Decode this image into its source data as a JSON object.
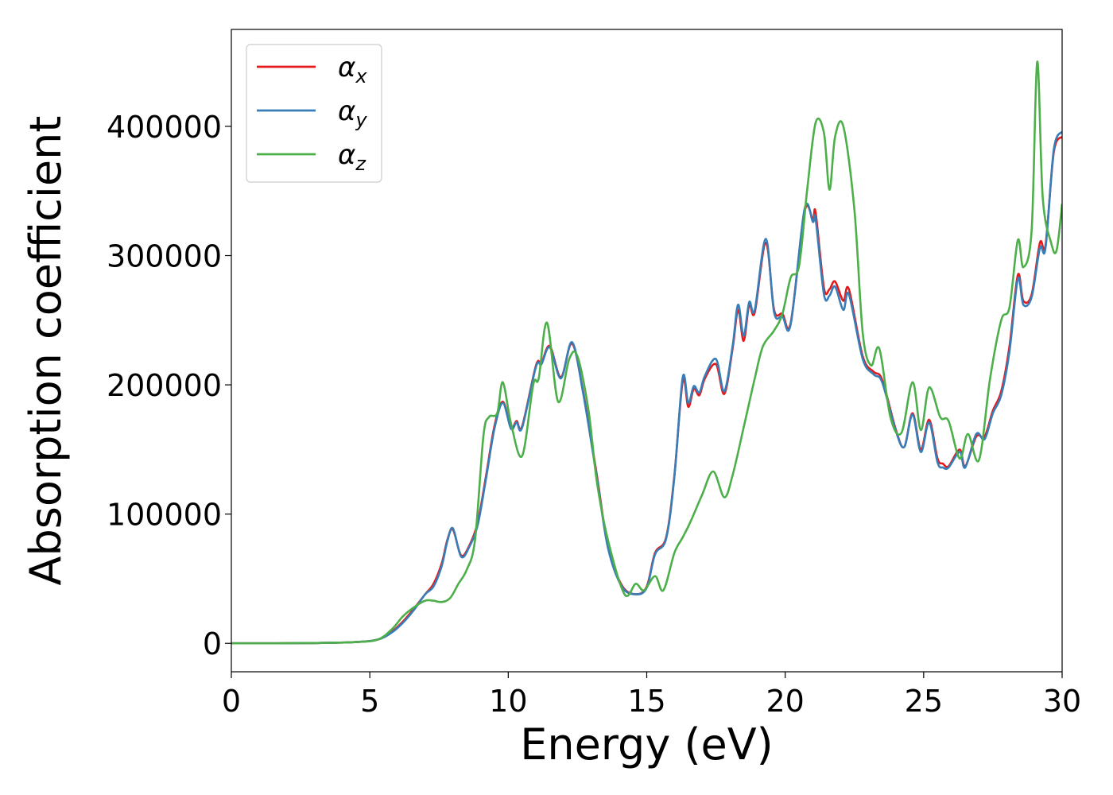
{
  "chart_data": {
    "type": "line",
    "xlabel": "Energy (eV)",
    "ylabel": "Absorption coefficient",
    "xlim": [
      0,
      30
    ],
    "ylim": [
      -22000,
      475000
    ],
    "xticks": [
      0,
      5,
      10,
      15,
      20,
      25,
      30
    ],
    "xtick_labels": [
      "0",
      "5",
      "10",
      "15",
      "20",
      "25",
      "30"
    ],
    "yticks": [
      0,
      100000,
      200000,
      300000,
      400000
    ],
    "ytick_labels": [
      "0",
      "100000",
      "200000",
      "300000",
      "400000"
    ],
    "grid": false,
    "legend_position": "top-left",
    "series": [
      {
        "name": "α",
        "subscript": "x",
        "color": "#e41a1c",
        "points": [
          [
            0,
            0
          ],
          [
            3,
            200
          ],
          [
            4.5,
            1000
          ],
          [
            5.3,
            3000
          ],
          [
            5.8,
            9000
          ],
          [
            6.2,
            17000
          ],
          [
            6.6,
            27000
          ],
          [
            7.0,
            38000
          ],
          [
            7.3,
            46000
          ],
          [
            7.6,
            62000
          ],
          [
            7.8,
            80000
          ],
          [
            8.0,
            88000
          ],
          [
            8.3,
            68000
          ],
          [
            8.6,
            76000
          ],
          [
            8.9,
            94000
          ],
          [
            9.2,
            130000
          ],
          [
            9.5,
            168000
          ],
          [
            9.8,
            187000
          ],
          [
            10.1,
            167000
          ],
          [
            10.3,
            172000
          ],
          [
            10.5,
            168000
          ],
          [
            11.0,
            215000
          ],
          [
            11.2,
            217000
          ],
          [
            11.5,
            230000
          ],
          [
            11.9,
            206000
          ],
          [
            12.3,
            232000
          ],
          [
            12.7,
            195000
          ],
          [
            13.2,
            130000
          ],
          [
            13.6,
            75000
          ],
          [
            14.1,
            45000
          ],
          [
            14.6,
            38000
          ],
          [
            15.0,
            44000
          ],
          [
            15.3,
            70000
          ],
          [
            15.7,
            82000
          ],
          [
            16.0,
            130000
          ],
          [
            16.3,
            203000
          ],
          [
            16.5,
            183000
          ],
          [
            16.7,
            197000
          ],
          [
            16.9,
            192000
          ],
          [
            17.1,
            205000
          ],
          [
            17.5,
            216000
          ],
          [
            17.8,
            193000
          ],
          [
            18.1,
            228000
          ],
          [
            18.3,
            258000
          ],
          [
            18.5,
            234000
          ],
          [
            18.7,
            262000
          ],
          [
            18.9,
            256000
          ],
          [
            19.3,
            310000
          ],
          [
            19.6,
            258000
          ],
          [
            19.9,
            255000
          ],
          [
            20.2,
            248000
          ],
          [
            20.7,
            334000
          ],
          [
            21.0,
            328000
          ],
          [
            21.1,
            333000
          ],
          [
            21.4,
            275000
          ],
          [
            21.6,
            274000
          ],
          [
            21.8,
            280000
          ],
          [
            22.1,
            265000
          ],
          [
            22.3,
            274000
          ],
          [
            22.8,
            222000
          ],
          [
            23.2,
            210000
          ],
          [
            23.5,
            204000
          ],
          [
            24.0,
            165000
          ],
          [
            24.3,
            152000
          ],
          [
            24.6,
            178000
          ],
          [
            24.9,
            150000
          ],
          [
            25.2,
            173000
          ],
          [
            25.5,
            143000
          ],
          [
            25.7,
            139000
          ],
          [
            25.9,
            137000
          ],
          [
            26.3,
            150000
          ],
          [
            26.5,
            137000
          ],
          [
            26.9,
            160000
          ],
          [
            27.2,
            160000
          ],
          [
            27.5,
            180000
          ],
          [
            27.8,
            195000
          ],
          [
            28.1,
            230000
          ],
          [
            28.4,
            285000
          ],
          [
            28.6,
            265000
          ],
          [
            28.9,
            270000
          ],
          [
            29.2,
            310000
          ],
          [
            29.4,
            308000
          ],
          [
            29.7,
            380000
          ],
          [
            30,
            392000
          ]
        ]
      },
      {
        "name": "α",
        "subscript": "y",
        "color": "#377eb8",
        "points": [
          [
            0,
            0
          ],
          [
            3,
            200
          ],
          [
            4.5,
            1000
          ],
          [
            5.3,
            3000
          ],
          [
            5.8,
            8500
          ],
          [
            6.2,
            16000
          ],
          [
            6.6,
            26000
          ],
          [
            7.0,
            38000
          ],
          [
            7.3,
            44000
          ],
          [
            7.6,
            60000
          ],
          [
            7.8,
            79000
          ],
          [
            8.0,
            89000
          ],
          [
            8.3,
            67000
          ],
          [
            8.6,
            75000
          ],
          [
            8.9,
            92000
          ],
          [
            9.2,
            128000
          ],
          [
            9.5,
            166000
          ],
          [
            9.8,
            186000
          ],
          [
            10.1,
            166000
          ],
          [
            10.3,
            171000
          ],
          [
            10.5,
            167000
          ],
          [
            11.0,
            214000
          ],
          [
            11.2,
            216000
          ],
          [
            11.5,
            229000
          ],
          [
            11.9,
            205000
          ],
          [
            12.3,
            233000
          ],
          [
            12.7,
            194000
          ],
          [
            13.2,
            128000
          ],
          [
            13.6,
            74000
          ],
          [
            14.1,
            44000
          ],
          [
            14.6,
            38000
          ],
          [
            15.0,
            43000
          ],
          [
            15.3,
            69000
          ],
          [
            15.7,
            81000
          ],
          [
            16.0,
            129000
          ],
          [
            16.3,
            206000
          ],
          [
            16.5,
            186000
          ],
          [
            16.7,
            199000
          ],
          [
            16.9,
            194000
          ],
          [
            17.1,
            207000
          ],
          [
            17.5,
            220000
          ],
          [
            17.8,
            195000
          ],
          [
            18.1,
            230000
          ],
          [
            18.3,
            262000
          ],
          [
            18.5,
            238000
          ],
          [
            18.7,
            264000
          ],
          [
            18.9,
            258000
          ],
          [
            19.3,
            313000
          ],
          [
            19.6,
            256000
          ],
          [
            19.9,
            253000
          ],
          [
            20.2,
            247000
          ],
          [
            20.7,
            336000
          ],
          [
            21.0,
            326000
          ],
          [
            21.1,
            328000
          ],
          [
            21.4,
            270000
          ],
          [
            21.6,
            269000
          ],
          [
            21.8,
            276000
          ],
          [
            22.1,
            258000
          ],
          [
            22.3,
            270000
          ],
          [
            22.8,
            220000
          ],
          [
            23.2,
            208000
          ],
          [
            23.5,
            202000
          ],
          [
            24.0,
            164000
          ],
          [
            24.3,
            152000
          ],
          [
            24.6,
            177000
          ],
          [
            24.9,
            148000
          ],
          [
            25.2,
            171000
          ],
          [
            25.5,
            140000
          ],
          [
            25.7,
            136000
          ],
          [
            25.9,
            136000
          ],
          [
            26.3,
            148000
          ],
          [
            26.5,
            136000
          ],
          [
            26.9,
            162000
          ],
          [
            27.2,
            158000
          ],
          [
            27.5,
            178000
          ],
          [
            27.8,
            192000
          ],
          [
            28.1,
            226000
          ],
          [
            28.4,
            282000
          ],
          [
            28.6,
            262000
          ],
          [
            28.9,
            268000
          ],
          [
            29.2,
            306000
          ],
          [
            29.4,
            306000
          ],
          [
            29.7,
            382000
          ],
          [
            30,
            396000
          ]
        ]
      },
      {
        "name": "α",
        "subscript": "z",
        "color": "#4daf4a",
        "points": [
          [
            0,
            0
          ],
          [
            3,
            200
          ],
          [
            4.5,
            1000
          ],
          [
            5.3,
            3000
          ],
          [
            5.8,
            11000
          ],
          [
            6.2,
            21000
          ],
          [
            6.6,
            28000
          ],
          [
            7.0,
            33000
          ],
          [
            7.3,
            33000
          ],
          [
            7.6,
            32000
          ],
          [
            7.9,
            35000
          ],
          [
            8.2,
            46000
          ],
          [
            8.5,
            57000
          ],
          [
            8.8,
            80000
          ],
          [
            9.1,
            160000
          ],
          [
            9.3,
            175000
          ],
          [
            9.6,
            178000
          ],
          [
            9.8,
            202000
          ],
          [
            10.1,
            170000
          ],
          [
            10.5,
            145000
          ],
          [
            10.9,
            200000
          ],
          [
            11.1,
            205000
          ],
          [
            11.4,
            248000
          ],
          [
            11.8,
            187000
          ],
          [
            12.2,
            220000
          ],
          [
            12.5,
            222000
          ],
          [
            12.9,
            180000
          ],
          [
            13.2,
            125000
          ],
          [
            13.6,
            80000
          ],
          [
            14.2,
            38000
          ],
          [
            14.6,
            46000
          ],
          [
            14.9,
            41000
          ],
          [
            15.3,
            52000
          ],
          [
            15.6,
            41000
          ],
          [
            16.0,
            70000
          ],
          [
            16.3,
            82000
          ],
          [
            16.6,
            95000
          ],
          [
            17.0,
            115000
          ],
          [
            17.4,
            133000
          ],
          [
            17.8,
            113000
          ],
          [
            18.1,
            130000
          ],
          [
            18.5,
            167000
          ],
          [
            18.9,
            205000
          ],
          [
            19.2,
            230000
          ],
          [
            19.6,
            242000
          ],
          [
            19.9,
            255000
          ],
          [
            20.2,
            283000
          ],
          [
            20.5,
            292000
          ],
          [
            20.8,
            352000
          ],
          [
            21.1,
            403000
          ],
          [
            21.4,
            395000
          ],
          [
            21.6,
            351000
          ],
          [
            21.8,
            392000
          ],
          [
            22.1,
            400000
          ],
          [
            22.5,
            335000
          ],
          [
            22.8,
            240000
          ],
          [
            23.1,
            215000
          ],
          [
            23.4,
            228000
          ],
          [
            23.8,
            175000
          ],
          [
            24.2,
            163000
          ],
          [
            24.6,
            202000
          ],
          [
            24.9,
            165000
          ],
          [
            25.2,
            198000
          ],
          [
            25.6,
            175000
          ],
          [
            25.9,
            172000
          ],
          [
            26.3,
            143000
          ],
          [
            26.6,
            162000
          ],
          [
            27.0,
            142000
          ],
          [
            27.4,
            205000
          ],
          [
            27.8,
            250000
          ],
          [
            28.1,
            260000
          ],
          [
            28.4,
            312000
          ],
          [
            28.6,
            291000
          ],
          [
            28.9,
            320000
          ],
          [
            29.1,
            450000
          ],
          [
            29.3,
            345000
          ],
          [
            29.6,
            310000
          ],
          [
            29.8,
            304000
          ],
          [
            30,
            340000
          ]
        ]
      }
    ]
  }
}
